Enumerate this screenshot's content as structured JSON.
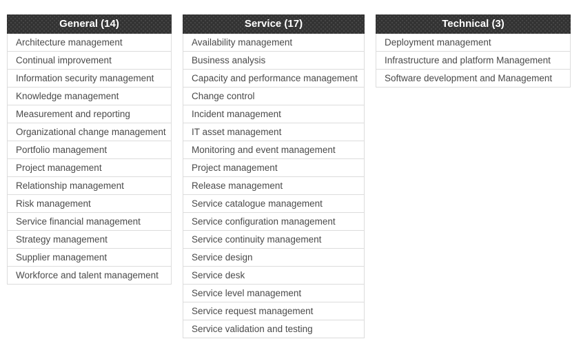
{
  "colors": {
    "header_bg": "#333333",
    "header_dot": "#474747",
    "header_text": "#ffffff",
    "row_text": "#4a4a4a",
    "row_border": "#dcdcdc",
    "row_bg": "#ffffff",
    "page_bg": "#ffffff"
  },
  "columns": [
    {
      "id": "general",
      "title": "General (14)",
      "items": [
        "Architecture management",
        "Continual improvement",
        "Information security management",
        "Knowledge management",
        "Measurement and reporting",
        "Organizational change management",
        "Portfolio management",
        "Project management",
        "Relationship management",
        "Risk management",
        "Service financial management",
        "Strategy management",
        "Supplier management",
        "Workforce and talent management"
      ]
    },
    {
      "id": "service",
      "title": "Service (17)",
      "items": [
        "Availability management",
        "Business analysis",
        "Capacity and performance management",
        "Change control",
        "Incident management",
        "IT asset management",
        "Monitoring and event management",
        "Project management",
        "Release management",
        "Service catalogue management",
        "Service configuration management",
        "Service continuity management",
        "Service design",
        "Service desk",
        "Service level management",
        "Service request management",
        "Service validation and testing"
      ]
    },
    {
      "id": "technical",
      "title": "Technical (3)",
      "items": [
        "Deployment management",
        "Infrastructure and platform Management",
        "Software development and Management"
      ]
    }
  ]
}
